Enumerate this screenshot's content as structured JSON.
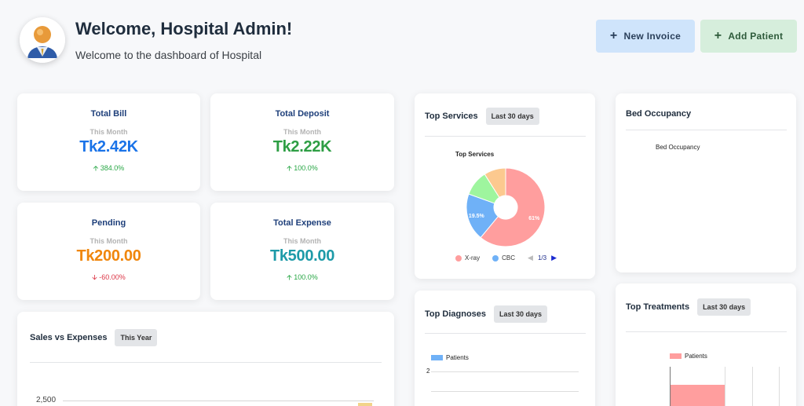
{
  "header": {
    "title": "Welcome, Hospital Admin!",
    "subtitle": "Welcome to the dashboard of Hospital",
    "new_invoice": "New Invoice",
    "add_patient": "Add Patient"
  },
  "stats": [
    {
      "title": "Total Bill",
      "period": "This Month",
      "value": "Tk2.42K",
      "change": "384.0%",
      "direction": "up",
      "color": "#1a73e8"
    },
    {
      "title": "Total Deposit",
      "period": "This Month",
      "value": "Tk2.22K",
      "change": "100.0%",
      "direction": "up",
      "color": "#2e9e44"
    },
    {
      "title": "Pending",
      "period": "This Month",
      "value": "Tk200.00",
      "change": "-60.00%",
      "direction": "down",
      "color": "#f0860c"
    },
    {
      "title": "Total Expense",
      "period": "This Month",
      "value": "Tk500.00",
      "change": "100.0%",
      "direction": "up",
      "color": "#1d9aa8"
    }
  ],
  "sales_expenses": {
    "title": "Sales vs Expenses",
    "period": "This Year",
    "ytick": "2,500"
  },
  "top_services": {
    "title": "Top Services",
    "period": "Last 30 days",
    "chart_title": "Top Services",
    "legend": [
      "X-ray",
      "CBC"
    ],
    "pager": "1/3"
  },
  "chart_data": {
    "type": "pie",
    "title": "Top Services",
    "categories": [
      "X-ray",
      "CBC",
      "",
      ""
    ],
    "values": [
      61,
      19.5,
      10.5,
      9
    ],
    "labels": [
      "61%",
      "19.5%",
      "",
      ""
    ],
    "colors": [
      "#ff9e9e",
      "#6fb1f7",
      "#9ef59e",
      "#fcc98f"
    ]
  },
  "bed_occupancy": {
    "title": "Bed Occupancy",
    "chart_title": "Bed Occupancy"
  },
  "top_diagnoses": {
    "title": "Top Diagnoses",
    "period": "Last 30 days",
    "legend": "Patients",
    "ytick": "2"
  },
  "top_treatments": {
    "title": "Top Treatments",
    "period": "Last 30 days",
    "legend": "Patients"
  },
  "colors": {
    "up": "#28a745",
    "down": "#dc3545",
    "title_blue": "#1e3f7a",
    "invoice_btn": "#cfe4fb",
    "patient_btn": "#d6eedc"
  }
}
